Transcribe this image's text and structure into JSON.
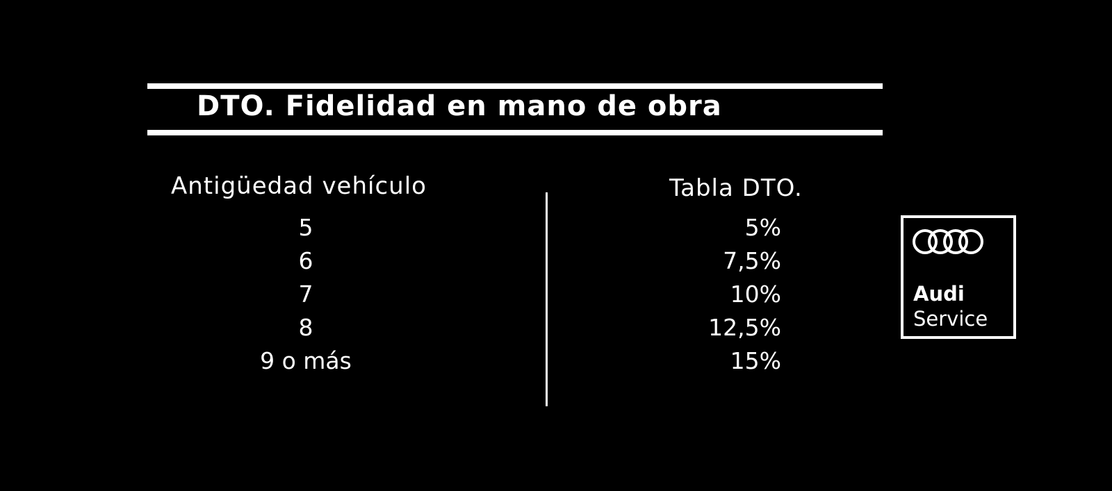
{
  "header": {
    "title": "DTO. Fidelidad en mano de obra"
  },
  "table": {
    "headers": [
      "Antigüedad vehículo",
      "Tabla DTO."
    ],
    "rows": [
      [
        "5",
        "5%"
      ],
      [
        "6",
        "7,5%"
      ],
      [
        "7",
        "10%"
      ],
      [
        "8",
        "12,5%"
      ],
      [
        "9 o más",
        "15%"
      ]
    ]
  },
  "logo": {
    "brand": "Audi",
    "subtitle": "Service"
  }
}
